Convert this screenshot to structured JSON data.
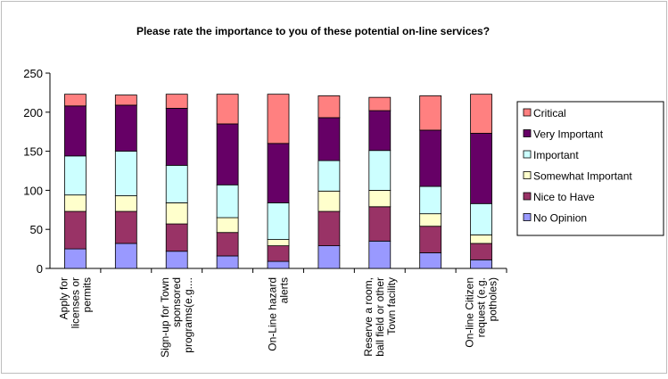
{
  "chart_data": {
    "type": "bar",
    "stacked": true,
    "title": "Please rate the importance to you of these potential on-line services?",
    "xlabel": "",
    "ylabel": "",
    "ylim": [
      0,
      250
    ],
    "yticks": [
      0,
      50,
      100,
      150,
      200,
      250
    ],
    "grid": false,
    "legend_position": "right",
    "categories": [
      "Apply for licenses or permits",
      "",
      "Sign-up for Town sponsored programs(e.g....",
      "",
      "On-Line hazard alerts",
      "",
      "Reserve a room, ball field or other Town facility",
      "",
      "On-line Citizen request (e.g. potholes)"
    ],
    "category_label_lines": [
      [
        "Apply for",
        "licenses or",
        "permits"
      ],
      [],
      [
        "Sign-up for Town",
        "sponsored",
        "programs(e.g...."
      ],
      [],
      [
        "On-Line hazard",
        "alerts"
      ],
      [],
      [
        "Reserve a room,",
        "ball field or other",
        "Town facility"
      ],
      [],
      [
        "On-line Citizen",
        "request (e.g.",
        "potholes)"
      ]
    ],
    "series": [
      {
        "name": "No Opinion",
        "color": "#9999ff",
        "values": [
          25,
          32,
          22,
          16,
          9,
          29,
          35,
          20,
          11
        ]
      },
      {
        "name": "Nice to Have",
        "color": "#993366",
        "values": [
          48,
          41,
          35,
          30,
          20,
          44,
          44,
          34,
          21
        ]
      },
      {
        "name": "Somewhat Important",
        "color": "#ffffcc",
        "values": [
          21,
          20,
          27,
          19,
          8,
          26,
          21,
          16,
          11
        ]
      },
      {
        "name": "Important",
        "color": "#ccffff",
        "values": [
          50,
          57,
          48,
          42,
          47,
          39,
          51,
          35,
          40
        ]
      },
      {
        "name": "Very Important",
        "color": "#660066",
        "values": [
          64,
          59,
          73,
          78,
          76,
          55,
          51,
          72,
          90
        ]
      },
      {
        "name": "Critical",
        "color": "#ff8080",
        "values": [
          15,
          13,
          18,
          38,
          63,
          28,
          17,
          44,
          50
        ]
      }
    ],
    "legend_order": [
      "Critical",
      "Very Important",
      "Important",
      "Somewhat Important",
      "Nice to Have",
      "No Opinion"
    ]
  }
}
